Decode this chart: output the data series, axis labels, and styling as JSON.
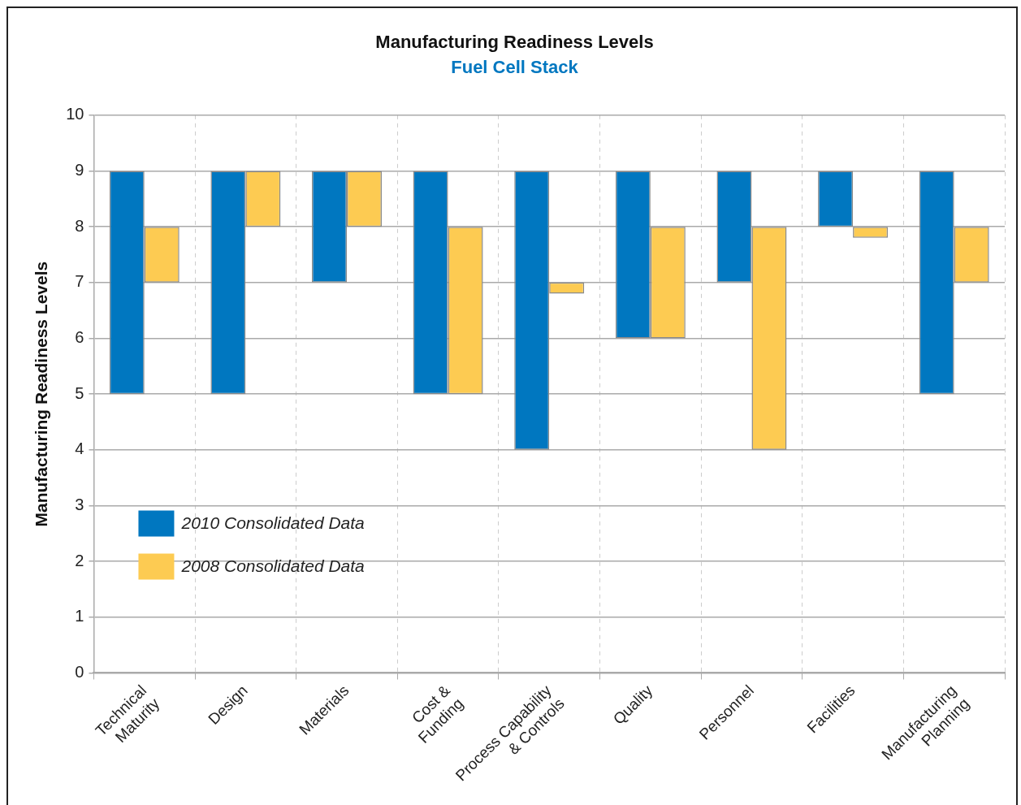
{
  "chart_data": {
    "type": "bar",
    "title": "Manufacturing Readiness Levels",
    "subtitle": "Fuel Cell Stack",
    "ylabel": "Manufacturing Readiness Levels",
    "categories": [
      "Technical Maturity",
      "Design",
      "Materials",
      "Cost & Funding",
      "Process Capability & Controls",
      "Quality",
      "Personnel",
      "Facilities",
      "Manufacturing Planning"
    ],
    "series": [
      {
        "name": "2010 Consolidated Data",
        "color": "#0077c0",
        "base": [
          5,
          5,
          7,
          5,
          4,
          6,
          7,
          8,
          5
        ],
        "values": [
          4,
          4,
          2,
          4,
          5,
          3,
          2,
          1,
          4
        ]
      },
      {
        "name": "2008 Consolidated Data",
        "color": "#fdcb52",
        "base": [
          7,
          8,
          8,
          5,
          6.8,
          6,
          4,
          7.8,
          7
        ],
        "values": [
          1,
          1,
          1,
          3,
          0.2,
          2,
          4,
          0.2,
          1
        ]
      }
    ],
    "ylim": [
      0,
      10
    ],
    "yticks": [
      0,
      1,
      2,
      3,
      4,
      5,
      6,
      7,
      8,
      9,
      10
    ],
    "grid": true,
    "legend": "bottom left"
  }
}
